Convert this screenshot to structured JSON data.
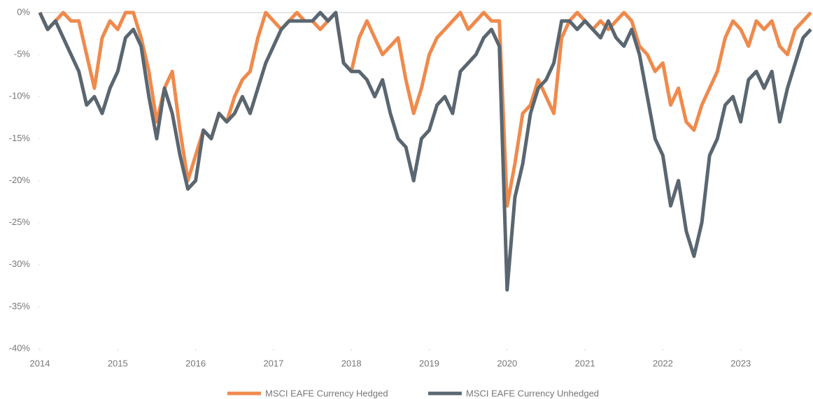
{
  "chart_data": {
    "type": "line",
    "x": [
      2014,
      2014.1,
      2014.2,
      2014.3,
      2014.4,
      2014.5,
      2014.6,
      2014.7,
      2014.8,
      2014.9,
      2015,
      2015.1,
      2015.2,
      2015.3,
      2015.4,
      2015.5,
      2015.6,
      2015.7,
      2015.8,
      2015.9,
      2016,
      2016.1,
      2016.2,
      2016.3,
      2016.4,
      2016.5,
      2016.6,
      2016.7,
      2016.8,
      2016.9,
      2017,
      2017.1,
      2017.2,
      2017.3,
      2017.4,
      2017.5,
      2017.6,
      2017.7,
      2017.8,
      2017.9,
      2018,
      2018.1,
      2018.2,
      2018.3,
      2018.4,
      2018.5,
      2018.6,
      2018.7,
      2018.8,
      2018.9,
      2019,
      2019.1,
      2019.2,
      2019.3,
      2019.4,
      2019.5,
      2019.6,
      2019.7,
      2019.8,
      2019.9,
      2020,
      2020.1,
      2020.2,
      2020.3,
      2020.4,
      2020.5,
      2020.6,
      2020.7,
      2020.8,
      2020.9,
      2021,
      2021.1,
      2021.2,
      2021.3,
      2021.4,
      2021.5,
      2021.6,
      2021.7,
      2021.8,
      2021.9,
      2022,
      2022.1,
      2022.2,
      2022.3,
      2022.4,
      2022.5,
      2022.6,
      2022.7,
      2022.8,
      2022.9,
      2023,
      2023.1,
      2023.2,
      2023.3,
      2023.4,
      2023.5,
      2023.6,
      2023.7,
      2023.8,
      2023.9
    ],
    "series": [
      {
        "name": "MSCI EAFE Currency Hedged",
        "color": "#ef8a4c",
        "values": [
          0,
          -2,
          -1,
          0,
          -1,
          -1,
          -5,
          -9,
          -3,
          -1,
          -2,
          0,
          0,
          -3,
          -7,
          -13,
          -9,
          -7,
          -14,
          -20,
          -17,
          -14,
          -15,
          -12,
          -13,
          -10,
          -8,
          -7,
          -3,
          0,
          -1,
          -2,
          -1,
          0,
          -1,
          -1,
          -2,
          -1,
          0,
          -6,
          -7,
          -3,
          -1,
          -3,
          -5,
          -4,
          -3,
          -8,
          -12,
          -9,
          -5,
          -3,
          -2,
          -1,
          0,
          -2,
          -1,
          0,
          -1,
          -1,
          -23,
          -18,
          -12,
          -11,
          -8,
          -10,
          -12,
          -3,
          -1,
          0,
          -1,
          -2,
          -1,
          -2,
          -1,
          0,
          -1,
          -4,
          -5,
          -7,
          -6,
          -11,
          -9,
          -13,
          -14,
          -11,
          -9,
          -7,
          -3,
          -1,
          -2,
          -4,
          -1,
          -2,
          -1,
          -4,
          -5,
          -2,
          -1,
          0
        ]
      },
      {
        "name": "MSCI EAFE Currency Unhedged",
        "color": "#5a6670",
        "values": [
          0,
          -2,
          -1,
          -3,
          -5,
          -7,
          -11,
          -10,
          -12,
          -9,
          -7,
          -3,
          -2,
          -4,
          -10,
          -15,
          -9,
          -12,
          -17,
          -21,
          -20,
          -14,
          -15,
          -12,
          -13,
          -12,
          -10,
          -12,
          -9,
          -6,
          -4,
          -2,
          -1,
          -1,
          -1,
          -1,
          0,
          -1,
          0,
          -6,
          -7,
          -7,
          -8,
          -10,
          -8,
          -12,
          -15,
          -16,
          -20,
          -15,
          -14,
          -11,
          -10,
          -12,
          -7,
          -6,
          -5,
          -3,
          -2,
          -4,
          -33,
          -22,
          -18,
          -12,
          -9,
          -8,
          -6,
          -1,
          -1,
          -2,
          -1,
          -2,
          -3,
          -1,
          -3,
          -4,
          -2,
          -5,
          -10,
          -15,
          -17,
          -23,
          -20,
          -26,
          -29,
          -25,
          -17,
          -15,
          -11,
          -10,
          -13,
          -8,
          -7,
          -9,
          -7,
          -13,
          -9,
          -6,
          -3,
          -2
        ]
      }
    ],
    "xlim": [
      2014,
      2023.91
    ],
    "xticks": [
      2014,
      2015,
      2016,
      2017,
      2018,
      2019,
      2020,
      2021,
      2022,
      2023
    ],
    "ylim": [
      -40,
      0
    ],
    "yticks": [
      {
        "value": 0,
        "label": "0%"
      },
      {
        "value": -5,
        "label": "-5%"
      },
      {
        "value": -10,
        "label": "-10%"
      },
      {
        "value": -15,
        "label": "-15%"
      },
      {
        "value": -20,
        "label": "-20%"
      },
      {
        "value": -25,
        "label": "-25%"
      },
      {
        "value": -30,
        "label": "-30%"
      },
      {
        "value": -35,
        "label": "-35%"
      },
      {
        "value": -40,
        "label": "-40%"
      }
    ],
    "legend": "bottom"
  }
}
